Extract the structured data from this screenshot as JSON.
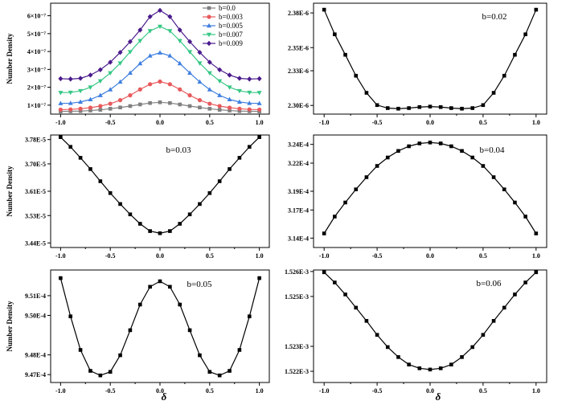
{
  "chart_data": [
    {
      "type": "line",
      "title": "",
      "xlabel": "",
      "ylabel": "Number Density",
      "xlim": [
        -1.1,
        1.1
      ],
      "ylim": [
        5e-08,
        6.7e-07
      ],
      "xticks": [
        -1.0,
        -0.5,
        0.0,
        0.5,
        1.0
      ],
      "xtick_labels": [
        "-1.0",
        "-0.5",
        "0.0",
        "0.5",
        "1.0"
      ],
      "yticks": [
        1e-07,
        2e-07,
        3e-07,
        4e-07,
        5e-07,
        6e-07
      ],
      "ytick_labels": [
        "1×10⁻⁷",
        "2×10⁻⁷",
        "3×10⁻⁷",
        "4×10⁻⁷",
        "5×10⁻⁷",
        "6×10⁻⁷"
      ],
      "legend_position": "top-right",
      "series": [
        {
          "name": "b=0.0",
          "color": "#808080",
          "marker": "square",
          "x": [
            -1.0,
            -0.9,
            -0.8,
            -0.7,
            -0.6,
            -0.5,
            -0.4,
            -0.3,
            -0.2,
            -0.1,
            0.0,
            0.1,
            0.2,
            0.3,
            0.4,
            0.5,
            0.6,
            0.7,
            0.8,
            0.9,
            1.0
          ],
          "values": [
            6.5e-08,
            6.6e-08,
            6.7e-08,
            7e-08,
            7.4e-08,
            8e-08,
            8.7e-08,
            9.5e-08,
            1.04e-07,
            1.12e-07,
            1.16e-07,
            1.12e-07,
            1.04e-07,
            9.5e-08,
            8.7e-08,
            8e-08,
            7.4e-08,
            7e-08,
            6.7e-08,
            6.6e-08,
            6.5e-08
          ]
        },
        {
          "name": "b=0.003",
          "color": "#e8595b",
          "marker": "circle",
          "x": [
            -1.0,
            -0.9,
            -0.8,
            -0.7,
            -0.6,
            -0.5,
            -0.4,
            -0.3,
            -0.2,
            -0.1,
            0.0,
            0.1,
            0.2,
            0.3,
            0.4,
            0.5,
            0.6,
            0.7,
            0.8,
            0.9,
            1.0
          ],
          "values": [
            7.5e-08,
            7.6e-08,
            8e-08,
            8.6e-08,
            9.5e-08,
            1.08e-07,
            1.28e-07,
            1.55e-07,
            1.88e-07,
            2.17e-07,
            2.32e-07,
            2.17e-07,
            1.88e-07,
            1.55e-07,
            1.28e-07,
            1.08e-07,
            9.5e-08,
            8.6e-08,
            8e-08,
            7.6e-08,
            7.5e-08
          ]
        },
        {
          "name": "b=0.005",
          "color": "#3f7fe0",
          "marker": "triangle",
          "x": [
            -1.0,
            -0.9,
            -0.8,
            -0.7,
            -0.6,
            -0.5,
            -0.4,
            -0.3,
            -0.2,
            -0.1,
            0.0,
            0.1,
            0.2,
            0.3,
            0.4,
            0.5,
            0.6,
            0.7,
            0.8,
            0.9,
            1.0
          ],
          "values": [
            1.1e-07,
            1.11e-07,
            1.18e-07,
            1.32e-07,
            1.55e-07,
            1.87e-07,
            2.3e-07,
            2.8e-07,
            3.33e-07,
            3.76e-07,
            3.93e-07,
            3.76e-07,
            3.33e-07,
            2.8e-07,
            2.3e-07,
            1.87e-07,
            1.55e-07,
            1.32e-07,
            1.18e-07,
            1.11e-07,
            1.1e-07
          ]
        },
        {
          "name": "b=0.007",
          "color": "#36c784",
          "marker": "triangle-down",
          "x": [
            -1.0,
            -0.9,
            -0.8,
            -0.7,
            -0.6,
            -0.5,
            -0.4,
            -0.3,
            -0.2,
            -0.1,
            0.0,
            0.1,
            0.2,
            0.3,
            0.4,
            0.5,
            0.6,
            0.7,
            0.8,
            0.9,
            1.0
          ],
          "values": [
            1.7e-07,
            1.71e-07,
            1.8e-07,
            2e-07,
            2.35e-07,
            2.8e-07,
            3.35e-07,
            3.98e-07,
            4.6e-07,
            5.15e-07,
            5.4e-07,
            5.15e-07,
            4.6e-07,
            3.98e-07,
            3.35e-07,
            2.8e-07,
            2.35e-07,
            2e-07,
            1.8e-07,
            1.71e-07,
            1.7e-07
          ]
        },
        {
          "name": "b=0.009",
          "color": "#4a1a8c",
          "marker": "diamond",
          "x": [
            -1.0,
            -0.9,
            -0.8,
            -0.7,
            -0.6,
            -0.5,
            -0.4,
            -0.3,
            -0.2,
            -0.1,
            0.0,
            0.1,
            0.2,
            0.3,
            0.4,
            0.5,
            0.6,
            0.7,
            0.8,
            0.9,
            1.0
          ],
          "values": [
            2.48e-07,
            2.46e-07,
            2.5e-07,
            2.68e-07,
            2.98e-07,
            3.4e-07,
            3.95e-07,
            4.55e-07,
            5.2e-07,
            5.95e-07,
            6.3e-07,
            5.95e-07,
            5.2e-07,
            4.55e-07,
            3.95e-07,
            3.4e-07,
            2.98e-07,
            2.68e-07,
            2.5e-07,
            2.46e-07,
            2.48e-07
          ]
        }
      ]
    },
    {
      "type": "line",
      "annotation": "b=0.02",
      "xlabel": "",
      "ylabel": "",
      "xlim": [
        -1.1,
        1.1
      ],
      "ylim": [
        2.2925e-06,
        2.3884e-06
      ],
      "xticks": [
        -1.0,
        -0.5,
        0.0,
        0.5,
        1.0
      ],
      "xtick_labels": [
        "-1.0",
        "-0.5",
        "0.0",
        "0.5",
        "1.0"
      ],
      "yticks": [
        2.3e-06,
        2.33e-06,
        2.35e-06,
        2.38e-06
      ],
      "ytick_labels": [
        "2.30E-6",
        "2.33E-6",
        "2.35E-6",
        "2.38E-6"
      ],
      "series": [
        {
          "name": "b=0.02",
          "color": "#000000",
          "marker": "square",
          "x": [
            -1.0,
            -0.9,
            -0.8,
            -0.7,
            -0.6,
            -0.5,
            -0.4,
            -0.3,
            -0.2,
            -0.1,
            0.0,
            0.1,
            0.2,
            0.3,
            0.4,
            0.5,
            0.6,
            0.7,
            0.8,
            0.9,
            1.0
          ],
          "values": [
            2.3828e-06,
            2.3615e-06,
            2.3438e-06,
            2.3257e-06,
            2.3109e-06,
            2.3003e-06,
            2.2977e-06,
            2.2972e-06,
            2.2977e-06,
            2.2986e-06,
            2.299e-06,
            2.2986e-06,
            2.2977e-06,
            2.2972e-06,
            2.2977e-06,
            2.3003e-06,
            2.3109e-06,
            2.3257e-06,
            2.3438e-06,
            2.3615e-06,
            2.3828e-06
          ]
        }
      ]
    },
    {
      "type": "line",
      "annotation": "b=0.03",
      "xlabel": "",
      "ylabel": "Number Density",
      "xlim": [
        -1.1,
        1.1
      ],
      "ylim": [
        3.425e-05,
        3.795e-05
      ],
      "xticks": [
        -1.0,
        -0.5,
        0.0,
        0.5,
        1.0
      ],
      "xtick_labels": [
        "-1.0",
        "-0.5",
        "0.0",
        "0.5",
        "1.0"
      ],
      "yticks": [
        3.44e-05,
        3.53e-05,
        3.61e-05,
        3.7e-05,
        3.78e-05
      ],
      "ytick_labels": [
        "3.44E-5",
        "3.53E-5",
        "3.61E-5",
        "3.70E-5",
        "3.78E-5"
      ],
      "series": [
        {
          "name": "b=0.03",
          "color": "#000000",
          "marker": "square",
          "x": [
            -1.0,
            -0.9,
            -0.8,
            -0.7,
            -0.6,
            -0.5,
            -0.4,
            -0.3,
            -0.2,
            -0.1,
            0.0,
            0.1,
            0.2,
            0.3,
            0.4,
            0.5,
            0.6,
            0.7,
            0.8,
            0.9,
            1.0
          ],
          "values": [
            3.788e-05,
            3.756e-05,
            3.72e-05,
            3.683e-05,
            3.643e-05,
            3.604e-05,
            3.568e-05,
            3.534e-05,
            3.503e-05,
            3.479e-05,
            3.472e-05,
            3.479e-05,
            3.503e-05,
            3.534e-05,
            3.568e-05,
            3.604e-05,
            3.643e-05,
            3.683e-05,
            3.72e-05,
            3.756e-05,
            3.788e-05
          ]
        }
      ]
    },
    {
      "type": "line",
      "annotation": "b=0.04",
      "xlabel": "",
      "ylabel": "",
      "xlim": [
        -1.1,
        1.1
      ],
      "ylim": [
        0.000313,
        0.000325
      ],
      "xticks": [
        -1.0,
        -0.5,
        0.0,
        0.5,
        1.0
      ],
      "xtick_labels": [
        "-1.0",
        "-0.5",
        "0.0",
        "0.5",
        "1.0"
      ],
      "yticks": [
        0.000314,
        0.000317,
        0.000319,
        0.000322,
        0.000324
      ],
      "ytick_labels": [
        "3.14E-4",
        "3.17E-4",
        "3.19E-4",
        "3.22E-4",
        "3.24E-4"
      ],
      "series": [
        {
          "name": "b=0.04",
          "color": "#000000",
          "marker": "square",
          "x": [
            -1.0,
            -0.9,
            -0.8,
            -0.7,
            -0.6,
            -0.5,
            -0.4,
            -0.3,
            -0.2,
            -0.1,
            0.0,
            0.1,
            0.2,
            0.3,
            0.4,
            0.5,
            0.6,
            0.7,
            0.8,
            0.9,
            1.0
          ],
          "values": [
            0.0003145,
            0.0003163,
            0.0003178,
            0.0003192,
            0.0003205,
            0.0003217,
            0.0003226,
            0.0003233,
            0.0003238,
            0.0003241,
            0.0003242,
            0.0003241,
            0.0003238,
            0.0003233,
            0.0003226,
            0.0003217,
            0.0003205,
            0.0003192,
            0.0003178,
            0.0003163,
            0.0003145
          ]
        }
      ]
    },
    {
      "type": "line",
      "annotation": "b=0.05",
      "xlabel": "δ",
      "ylabel": "Number Density",
      "xlim": [
        -1.1,
        1.1
      ],
      "ylim": [
        0.0009466,
        0.0009523
      ],
      "xticks": [
        -1.0,
        -0.5,
        0.0,
        0.5,
        1.0
      ],
      "xtick_labels": [
        "-1.0",
        "-0.5",
        "0.0",
        "0.5",
        "1.0"
      ],
      "yticks": [
        0.000947,
        0.000948,
        0.00095,
        0.000951
      ],
      "ytick_labels": [
        "9.47E-4",
        "9.48E-4",
        "9.50E-4",
        "9.51E-4"
      ],
      "series": [
        {
          "name": "b=0.05",
          "color": "#000000",
          "marker": "square",
          "x": [
            -1.0,
            -0.9,
            -0.8,
            -0.7,
            -0.6,
            -0.5,
            -0.4,
            -0.3,
            -0.2,
            -0.1,
            0.0,
            0.1,
            0.2,
            0.3,
            0.4,
            0.5,
            0.6,
            0.7,
            0.8,
            0.9,
            1.0
          ],
          "values": [
            0.00095189,
            0.00094995,
            0.00094825,
            0.00094719,
            0.00094696,
            0.00094714,
            0.00094798,
            0.00094925,
            0.00095055,
            0.00095145,
            0.00095173,
            0.00095145,
            0.00095055,
            0.00094925,
            0.00094798,
            0.00094714,
            0.00094696,
            0.00094719,
            0.00094825,
            0.00094995,
            0.00095189
          ]
        }
      ]
    },
    {
      "type": "line",
      "annotation": "b=0.06",
      "xlabel": "δ",
      "ylabel": "",
      "xlim": [
        -1.1,
        1.1
      ],
      "ylim": [
        0.00152155,
        0.00152606
      ],
      "xticks": [
        -1.0,
        -0.5,
        0.0,
        0.5,
        1.0
      ],
      "xtick_labels": [
        "-1.0",
        "-0.5",
        "0.0",
        "0.5",
        "1.0"
      ],
      "yticks": [
        0.001522,
        0.001523,
        0.001525,
        0.001526
      ],
      "ytick_labels": [
        "1.522E-3",
        "1.523E-3",
        "1.525E-3",
        "1.526E-3"
      ],
      "series": [
        {
          "name": "b=0.06",
          "color": "#000000",
          "marker": "square",
          "x": [
            -1.0,
            -0.9,
            -0.8,
            -0.7,
            -0.6,
            -0.5,
            -0.4,
            -0.3,
            -0.2,
            -0.1,
            0.0,
            0.1,
            0.2,
            0.3,
            0.4,
            0.5,
            0.6,
            0.7,
            0.8,
            0.9,
            1.0
          ],
          "values": [
            0.00152597,
            0.00152556,
            0.00152508,
            0.00152455,
            0.00152402,
            0.00152346,
            0.00152297,
            0.00152257,
            0.00152227,
            0.00152212,
            0.00152207,
            0.00152212,
            0.00152227,
            0.00152257,
            0.00152297,
            0.00152346,
            0.00152402,
            0.00152455,
            0.00152508,
            0.00152556,
            0.00152597
          ]
        }
      ]
    }
  ]
}
